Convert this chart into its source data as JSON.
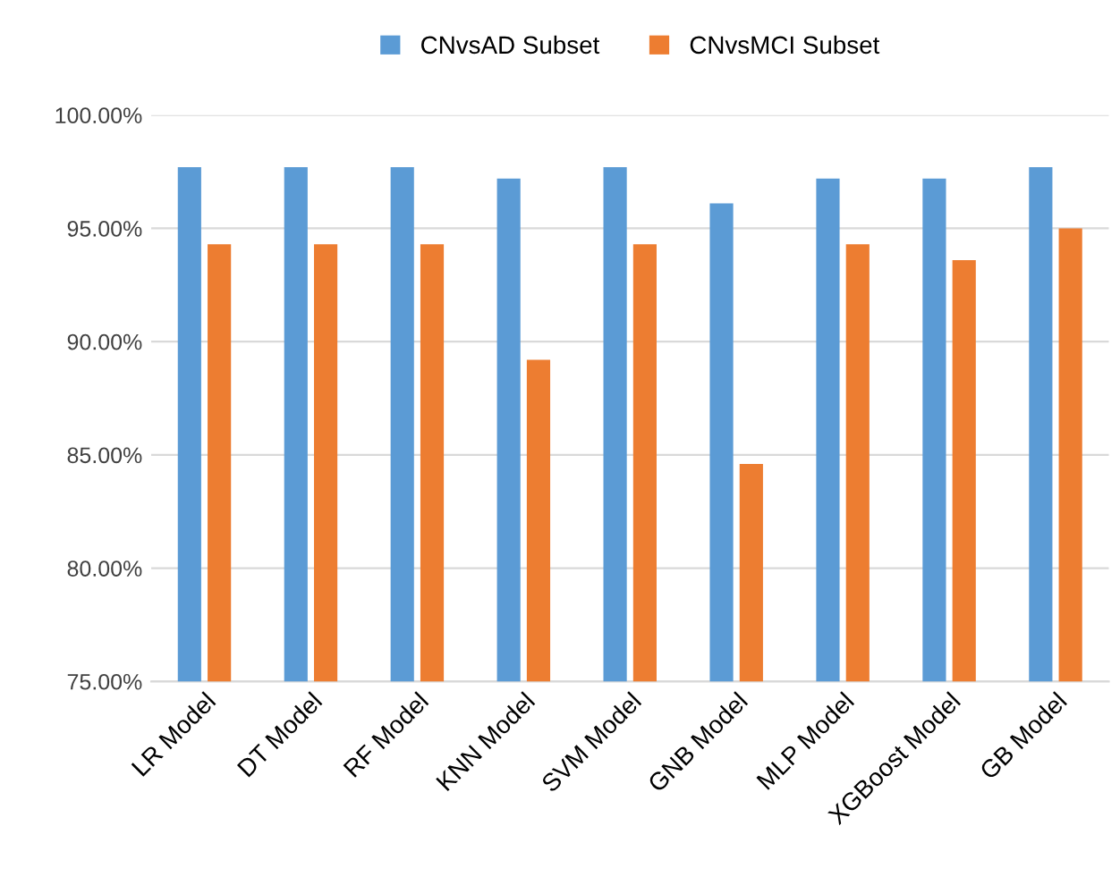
{
  "chart_data": {
    "type": "bar",
    "categories": [
      "LR Model",
      "DT Model",
      "RF Model",
      "KNN Model",
      "SVM Model",
      "GNB Model",
      "MLP Model",
      "XGBoost Model",
      "GB Model"
    ],
    "series": [
      {
        "name": "CNvsAD Subset",
        "color": "#5b9bd5",
        "values": [
          97.7,
          97.7,
          97.7,
          97.2,
          97.7,
          96.1,
          97.2,
          97.2,
          97.7
        ]
      },
      {
        "name": "CNvsMCI Subset",
        "color": "#ed7d31",
        "values": [
          94.3,
          94.3,
          94.3,
          89.2,
          94.3,
          84.6,
          94.3,
          93.6,
          95.0
        ]
      }
    ],
    "ylim": [
      75,
      100
    ],
    "yticks": [
      {
        "value": 75,
        "label": "75.00%"
      },
      {
        "value": 80,
        "label": "80.00%"
      },
      {
        "value": 85,
        "label": "85.00%"
      },
      {
        "value": 90,
        "label": "90.00%"
      },
      {
        "value": 95,
        "label": "95.00%"
      },
      {
        "value": 100,
        "label": "100.00%"
      }
    ],
    "grid": "y",
    "legend": "top"
  }
}
